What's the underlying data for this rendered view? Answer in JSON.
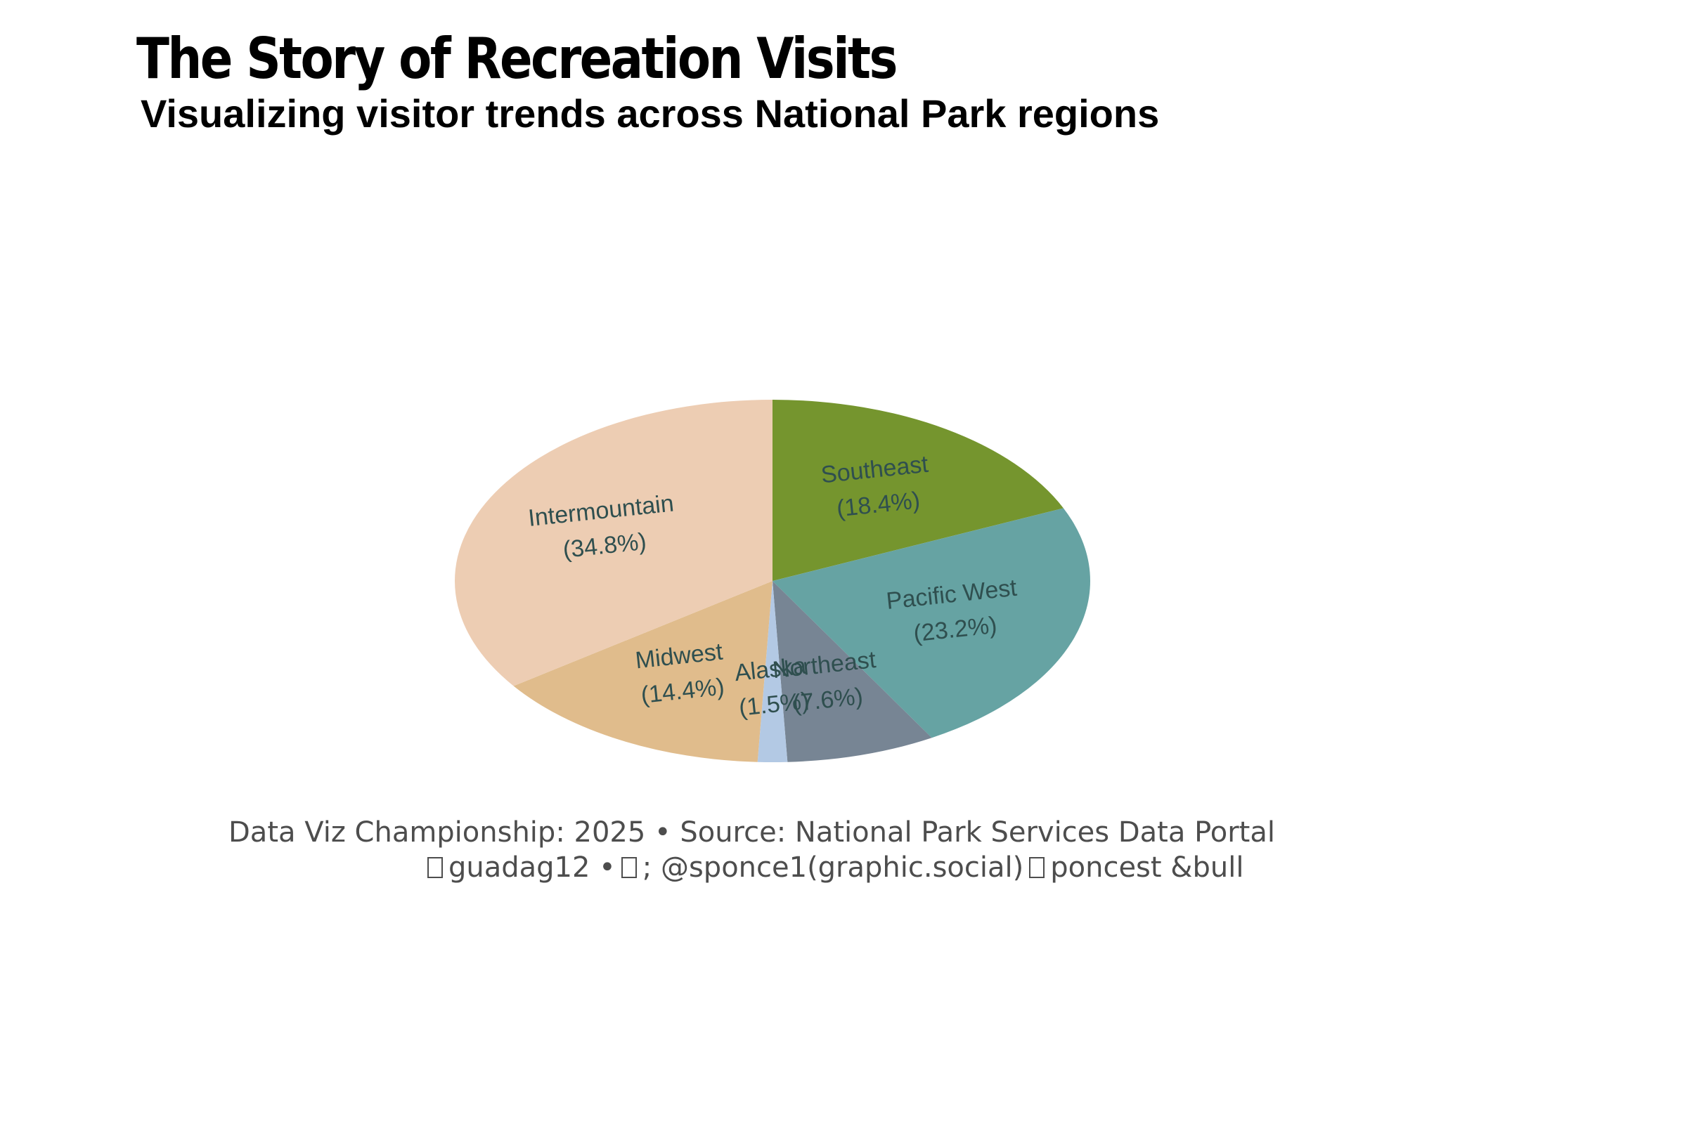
{
  "title": "The Story of Recreation Visits",
  "subtitle": "Visualizing visitor trends across National Park regions",
  "chart_data": {
    "type": "pie",
    "start_angle_deg": 90,
    "direction": "clockwise",
    "label_color": "#2f4f4f",
    "slices": [
      {
        "label": "Southeast",
        "pct_label": "(18.4%)",
        "value": 18.4,
        "color": "#75952e"
      },
      {
        "label": "Pacific West",
        "pct_label": "(23.2%)",
        "value": 23.2,
        "color": "#66a3a3"
      },
      {
        "label": "Northeast",
        "pct_label": "(7.6%)",
        "value": 7.6,
        "color": "#778594"
      },
      {
        "label": "Alaska",
        "pct_label": "(1.5%)",
        "value": 1.5,
        "color": "#b3c9e4"
      },
      {
        "label": "Midwest",
        "pct_label": "(14.4%)",
        "value": 14.4,
        "color": "#e0bc8c"
      },
      {
        "label": "Intermountain",
        "pct_label": "(34.8%)",
        "value": 34.8,
        "color": "#edcdb3"
      }
    ]
  },
  "caption": {
    "line1": "Data Viz Championship: 2025 • Source: National Park Services Data Portal",
    "line2_part1": "guadag12 •",
    "line2_part2": ";  @sponce1(graphic.social)",
    "line2_part3": "poncest &bull",
    "glyph_icon": "missing-glyph-icon"
  }
}
